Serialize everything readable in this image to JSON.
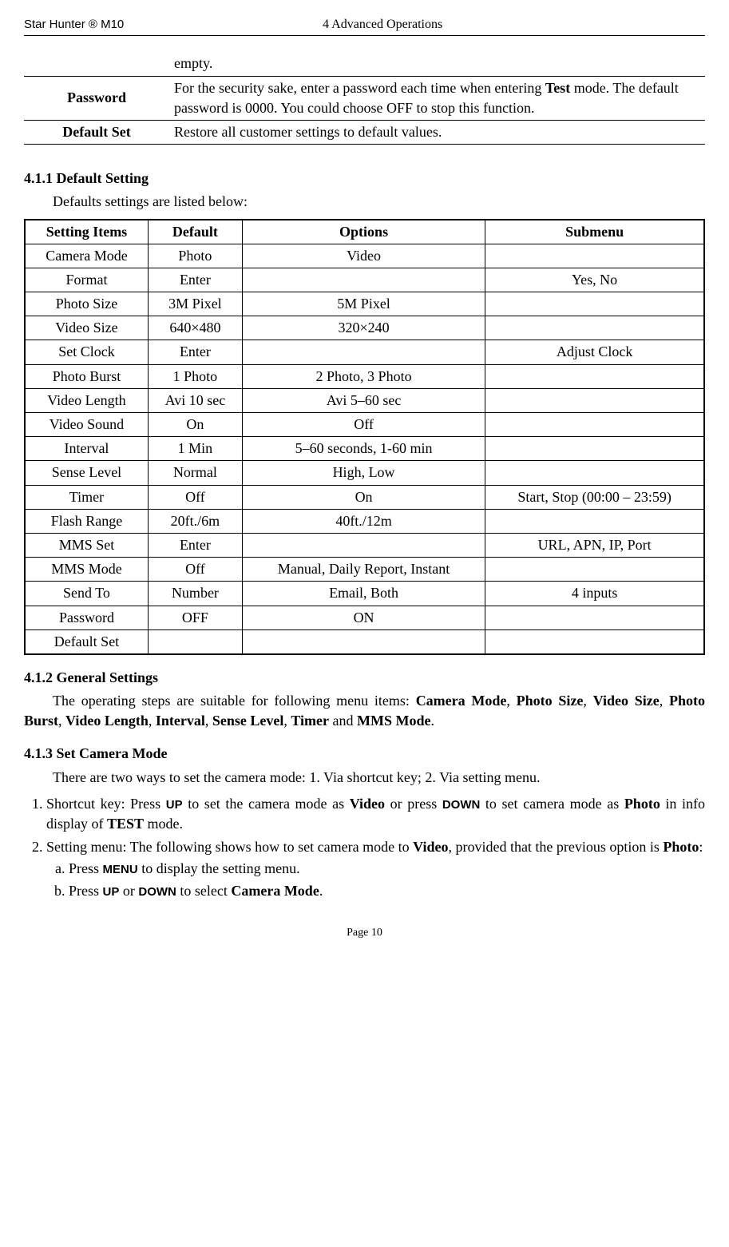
{
  "header": {
    "product": "Star Hunter ® M10",
    "chapter": "4 Advanced Operations"
  },
  "settings_desc": [
    {
      "name": "",
      "desc_pre": "empty.",
      "desc_bold": "",
      "desc_post": "",
      "show_name": false
    },
    {
      "name": "Password",
      "desc_pre": "For the security sake, enter a password each time when entering ",
      "desc_bold": "Test",
      "desc_post": " mode. The default password is 0000. You could choose OFF to stop this function.",
      "show_name": true
    },
    {
      "name": "Default Set",
      "desc_pre": "Restore all customer settings to default values.",
      "desc_bold": "",
      "desc_post": "",
      "show_name": true
    }
  ],
  "section_411": {
    "heading": "4.1.1    Default Setting",
    "intro": "Defaults settings are listed below:",
    "columns": [
      "Setting Items",
      "Default",
      "Options",
      "Submenu"
    ],
    "rows": [
      [
        "Camera Mode",
        "Photo",
        "Video",
        ""
      ],
      [
        "Format",
        "Enter",
        "",
        "Yes, No"
      ],
      [
        "Photo Size",
        "3M Pixel",
        "5M Pixel",
        ""
      ],
      [
        "Video Size",
        "640×480",
        "320×240",
        ""
      ],
      [
        "Set Clock",
        "Enter",
        "",
        "Adjust Clock"
      ],
      [
        "Photo Burst",
        "1 Photo",
        "2 Photo, 3 Photo",
        ""
      ],
      [
        "Video Length",
        "Avi 10 sec",
        "Avi 5–60 sec",
        ""
      ],
      [
        "Video Sound",
        "On",
        "Off",
        ""
      ],
      [
        "Interval",
        "1 Min",
        "5–60 seconds, 1-60 min",
        ""
      ],
      [
        "Sense Level",
        "Normal",
        "High, Low",
        ""
      ],
      [
        "Timer",
        "Off",
        "On",
        "Start, Stop (00:00 – 23:59)"
      ],
      [
        "Flash Range",
        "20ft./6m",
        "40ft./12m",
        ""
      ],
      [
        "MMS Set",
        "Enter",
        "",
        "URL, APN, IP, Port"
      ],
      [
        "MMS Mode",
        "Off",
        "Manual, Daily Report, Instant",
        ""
      ],
      [
        "Send To",
        "Number",
        "Email, Both",
        "4 inputs"
      ],
      [
        "Password",
        "OFF",
        "ON",
        ""
      ],
      [
        "Default Set",
        "",
        "",
        ""
      ]
    ]
  },
  "section_412": {
    "heading": "4.1.2    General Settings",
    "text_parts": [
      "The operating steps are suitable for following menu items: ",
      "Camera Mode",
      ", ",
      "Photo Size",
      ",  ",
      "Video Size",
      ",  ",
      "Photo Burst",
      ",  ",
      "Video Length",
      ",  ",
      "Interval",
      ",  ",
      "Sense Level",
      ",  ",
      "Timer",
      "  and ",
      "MMS Mode",
      "."
    ],
    "bold_indices": [
      1,
      3,
      5,
      7,
      9,
      11,
      13,
      15,
      17
    ]
  },
  "section_413": {
    "heading": "4.1.3    Set Camera Mode",
    "intro": "There are two ways to set the camera mode: 1. Via shortcut key; 2. Via setting menu.",
    "list": [
      {
        "parts": [
          "Shortcut key: Press ",
          "UP",
          " to set the camera mode as ",
          "Video",
          " or press ",
          "DOWN",
          " to set camera mode as ",
          "Photo",
          " in info display of ",
          "TEST",
          " mode."
        ],
        "sans_indices": [
          1,
          5
        ],
        "bold_indices": [
          3,
          7,
          9
        ]
      },
      {
        "parts": [
          "Setting menu: The following shows how to set camera mode to ",
          "Video",
          ", provided that the previous option is ",
          "Photo",
          ":"
        ],
        "sans_indices": [],
        "bold_indices": [
          1,
          3
        ],
        "sublist": [
          {
            "parts": [
              "Press ",
              "MENU",
              " to display the setting menu."
            ],
            "sans_indices": [
              1
            ],
            "bold_indices": []
          },
          {
            "parts": [
              "Press ",
              "UP",
              " or ",
              "DOWN",
              " to select ",
              "Camera Mode",
              "."
            ],
            "sans_indices": [
              1,
              3
            ],
            "bold_indices": [
              5
            ]
          }
        ]
      }
    ]
  },
  "footer": "Page 10"
}
